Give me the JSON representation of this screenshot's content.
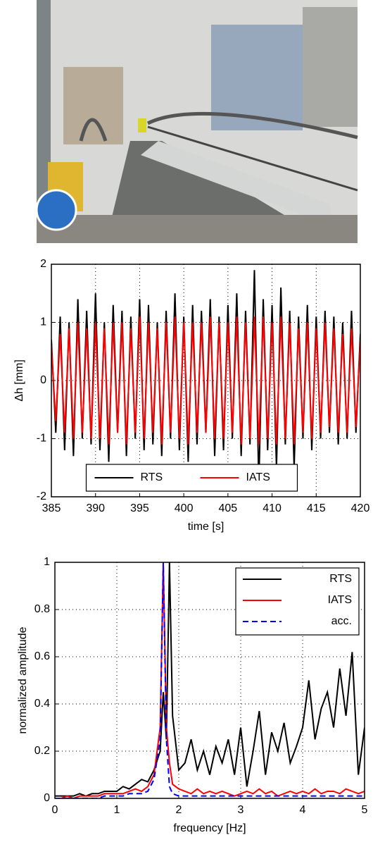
{
  "chart_data": [
    {
      "type": "line",
      "xlabel": "time [s]",
      "ylabel": "Δh [mm]",
      "x": [
        385,
        385.5,
        386,
        386.5,
        387,
        387.5,
        388,
        388.5,
        389,
        389.5,
        390,
        390.5,
        391,
        391.5,
        392,
        392.5,
        393,
        393.5,
        394,
        394.5,
        395,
        395.5,
        396,
        396.5,
        397,
        397.5,
        398,
        398.5,
        399,
        399.5,
        400,
        400.5,
        401,
        401.5,
        402,
        402.5,
        403,
        403.5,
        404,
        404.5,
        405,
        405.5,
        406,
        406.5,
        407,
        407.5,
        408,
        408.5,
        409,
        409.5,
        410,
        410.5,
        411,
        411.5,
        412,
        412.5,
        413,
        413.5,
        414,
        414.5,
        415,
        415.5,
        416,
        416.5,
        417,
        417.5,
        418,
        418.5,
        419,
        419.5,
        420
      ],
      "series": [
        {
          "name": "RTS",
          "color": "#000000",
          "values": [
            0.7,
            -0.9,
            1.1,
            -1.2,
            1.0,
            -1.3,
            1.4,
            -1.0,
            1.2,
            -1.1,
            1.5,
            -1.2,
            1.0,
            -1.4,
            1.3,
            -0.9,
            1.2,
            -1.3,
            1.1,
            -1.0,
            1.4,
            -1.2,
            1.3,
            -1.1,
            1.0,
            -1.3,
            1.2,
            -1.0,
            1.5,
            -1.2,
            1.1,
            -1.4,
            1.3,
            -1.1,
            1.2,
            -0.9,
            1.4,
            -1.3,
            1.1,
            -1.2,
            1.3,
            -1.0,
            1.5,
            -1.3,
            1.2,
            -1.1,
            1.9,
            -1.8,
            1.4,
            -1.2,
            1.3,
            -1.5,
            1.6,
            -1.1,
            1.2,
            -1.5,
            1.1,
            -1.0,
            1.3,
            -1.2,
            1.1,
            -1.0,
            1.2,
            -0.9,
            1.1,
            -1.1,
            1.0,
            -1.0,
            1.2,
            -0.9,
            0.8
          ]
        },
        {
          "name": "IATS",
          "color": "#ff0000",
          "values": [
            0.6,
            -0.7,
            0.8,
            -0.9,
            0.9,
            -1.0,
            1.0,
            -0.9,
            0.9,
            -1.0,
            1.0,
            -1.0,
            0.9,
            -1.1,
            1.0,
            -0.9,
            1.0,
            -1.1,
            0.9,
            -0.9,
            1.1,
            -1.0,
            1.0,
            -0.9,
            0.9,
            -1.1,
            1.0,
            -0.9,
            1.1,
            -1.0,
            1.0,
            -1.1,
            1.0,
            -0.9,
            1.0,
            -0.9,
            1.1,
            -1.0,
            1.0,
            -1.0,
            1.0,
            -0.9,
            1.1,
            -1.1,
            1.0,
            -1.0,
            1.1,
            -1.1,
            1.1,
            -1.0,
            1.0,
            -1.1,
            1.1,
            -1.0,
            1.0,
            -1.1,
            0.9,
            -0.9,
            1.0,
            -1.0,
            0.9,
            -0.9,
            1.0,
            -0.8,
            0.9,
            -0.9,
            0.8,
            -0.9,
            0.9,
            -0.8,
            0.7
          ]
        }
      ],
      "xlim": [
        385,
        420
      ],
      "ylim": [
        -2,
        2
      ],
      "xticks": [
        385,
        390,
        395,
        400,
        405,
        410,
        415,
        420
      ],
      "yticks": [
        -2,
        -1,
        0,
        1,
        2
      ],
      "grid": true,
      "legend": "lower center"
    },
    {
      "type": "line",
      "xlabel": "frequency [Hz]",
      "ylabel": "normalized amplitude",
      "x": [
        0,
        0.1,
        0.2,
        0.3,
        0.4,
        0.5,
        0.6,
        0.7,
        0.8,
        0.9,
        1,
        1.1,
        1.2,
        1.3,
        1.4,
        1.5,
        1.6,
        1.7,
        1.75,
        1.8,
        1.85,
        1.9,
        2,
        2.1,
        2.2,
        2.3,
        2.4,
        2.5,
        2.6,
        2.7,
        2.8,
        2.9,
        3,
        3.1,
        3.2,
        3.3,
        3.4,
        3.5,
        3.6,
        3.7,
        3.8,
        3.9,
        4,
        4.1,
        4.2,
        4.3,
        4.4,
        4.5,
        4.6,
        4.7,
        4.8,
        4.9,
        5
      ],
      "series": [
        {
          "name": "RTS",
          "color": "#000000",
          "values": [
            0.01,
            0.01,
            0.01,
            0.01,
            0.02,
            0.01,
            0.02,
            0.02,
            0.03,
            0.03,
            0.03,
            0.05,
            0.04,
            0.06,
            0.08,
            0.07,
            0.12,
            0.2,
            0.45,
            0.25,
            1.0,
            0.35,
            0.12,
            0.15,
            0.25,
            0.12,
            0.2,
            0.1,
            0.22,
            0.15,
            0.25,
            0.1,
            0.3,
            0.05,
            0.2,
            0.37,
            0.1,
            0.28,
            0.2,
            0.32,
            0.15,
            0.22,
            0.3,
            0.5,
            0.25,
            0.38,
            0.45,
            0.3,
            0.55,
            0.35,
            0.62,
            0.1,
            0.3
          ]
        },
        {
          "name": "IATS",
          "color": "#ff0000",
          "values": [
            0,
            0,
            0.01,
            0,
            0.01,
            0.01,
            0.01,
            0.01,
            0.02,
            0.02,
            0.02,
            0.02,
            0.03,
            0.04,
            0.03,
            0.05,
            0.1,
            0.3,
            1.0,
            0.3,
            0.15,
            0.06,
            0.04,
            0.03,
            0.02,
            0.04,
            0.02,
            0.03,
            0.02,
            0.03,
            0.02,
            0.01,
            0.02,
            0.03,
            0.02,
            0.04,
            0.02,
            0.03,
            0.01,
            0.02,
            0.03,
            0.02,
            0.03,
            0.02,
            0.04,
            0.02,
            0.03,
            0.03,
            0.02,
            0.04,
            0.03,
            0.02,
            0.03
          ]
        },
        {
          "name": "acc.",
          "color": "#0000ff",
          "linestyle": "dashed",
          "values": [
            0,
            0,
            0,
            0,
            0,
            0,
            0,
            0,
            0.01,
            0.01,
            0.01,
            0.01,
            0.02,
            0.02,
            0.02,
            0.03,
            0.08,
            0.25,
            1.0,
            0.25,
            0.05,
            0.02,
            0.01,
            0.01,
            0.01,
            0.01,
            0.01,
            0.01,
            0.01,
            0.01,
            0.01,
            0.01,
            0.01,
            0.01,
            0.01,
            0.01,
            0.01,
            0.01,
            0.01,
            0.01,
            0.01,
            0.01,
            0.01,
            0.01,
            0.01,
            0.01,
            0.01,
            0.01,
            0.01,
            0.01,
            0.01,
            0.01,
            0.01
          ]
        }
      ],
      "xlim": [
        0,
        5
      ],
      "ylim": [
        0,
        1
      ],
      "xticks": [
        0,
        1,
        2,
        3,
        4,
        5
      ],
      "yticks": [
        0,
        0.2,
        0.4,
        0.6,
        0.8,
        1
      ],
      "grid": true,
      "legend": "upper right"
    }
  ]
}
